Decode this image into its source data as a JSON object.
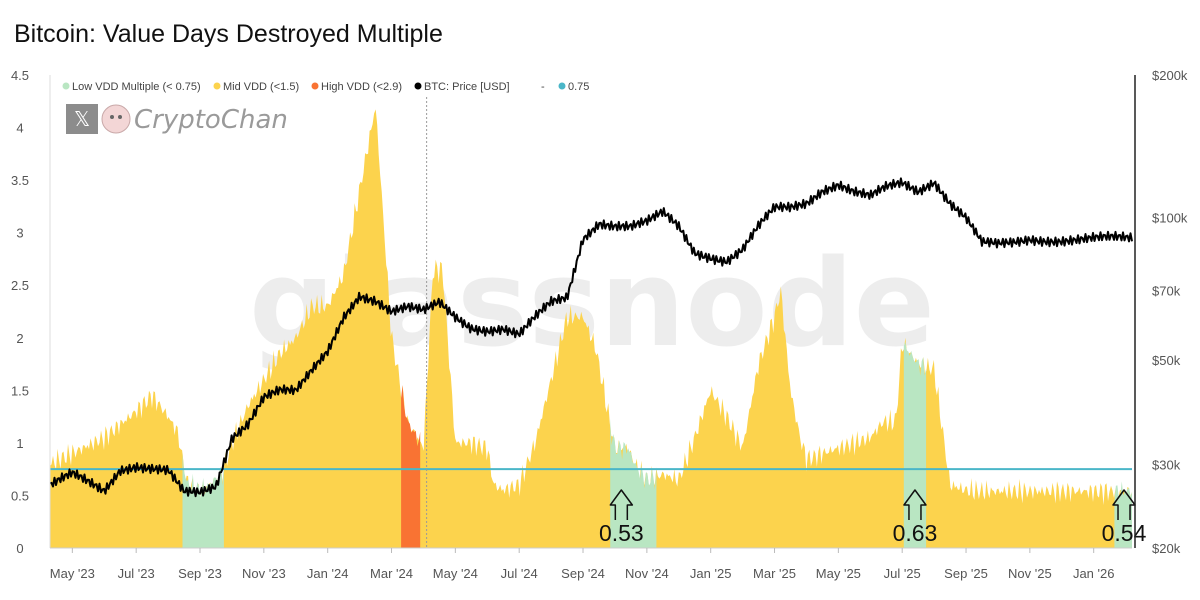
{
  "chart_data": {
    "type": "area",
    "title": "Bitcoin: Value Days Destroyed Multiple",
    "x_ticks": [
      "May '23",
      "Jul '23",
      "Sep '23",
      "Nov '23",
      "Jan '24",
      "Mar '24",
      "May '24",
      "Jul '24",
      "Sep '24",
      "Nov '24",
      "Jan '25",
      "Mar '25",
      "May '25",
      "Jul '25",
      "Sep '25",
      "Nov '25",
      "Jan '26"
    ],
    "x_range_months": [
      -0.7,
      33.2
    ],
    "y_left": {
      "ylim": [
        0,
        4.5
      ],
      "ticks": [
        "0",
        "0.5",
        "1",
        "1.5",
        "2",
        "2.5",
        "3",
        "3.5",
        "4",
        "4.5"
      ]
    },
    "y_right": {
      "scale": "log",
      "ylim": [
        20000,
        200000
      ],
      "ticks": [
        {
          "v": 200000,
          "label": "$200k"
        },
        {
          "v": 100000,
          "label": "$100k"
        },
        {
          "v": 70000,
          "label": "$70k"
        },
        {
          "v": 50000,
          "label": "$50k"
        },
        {
          "v": 30000,
          "label": "$30k"
        },
        {
          "v": 20000,
          "label": "$20k"
        }
      ]
    },
    "threshold": 0.75,
    "legend": [
      {
        "label": "Low VDD Multiple (< 0.75)",
        "color": "#b9e6c2"
      },
      {
        "label": "Mid VDD (<1.5)",
        "color": "#fcd34d"
      },
      {
        "label": "High VDD (<2.9)",
        "color": "#f97333"
      },
      {
        "label": "BTC: Price [USD]",
        "color": "#000000"
      },
      {
        "label": "-",
        "color": "#ffffff"
      },
      {
        "label": "0.75",
        "color": "#4ab6c8"
      }
    ],
    "series": [
      {
        "name": "VDD Multiple",
        "x": [
          -0.7,
          0,
          1,
          2,
          2.5,
          3,
          3.3,
          3.6,
          4,
          4.3,
          4.7,
          5,
          5.5,
          6,
          6.5,
          7,
          7.5,
          8,
          8.5,
          9,
          9.5,
          10,
          10.5,
          11,
          11.3,
          11.6,
          12,
          12.5,
          13,
          13.2,
          13.5,
          14,
          14.5,
          15,
          15.5,
          16,
          16.4,
          16.9,
          17,
          17.4,
          17.7,
          18,
          18.5,
          19,
          19.5,
          20,
          20.5,
          21,
          21.5,
          22,
          22.2,
          22.5,
          22.8,
          23,
          23.1,
          23.5,
          24,
          24.5,
          25,
          25.4,
          25.8,
          26,
          26.5,
          27,
          27.5,
          28,
          28.5,
          29,
          29.5,
          30,
          30.3,
          30.5,
          30.7,
          31,
          31.2,
          31.5,
          31.8,
          32,
          32.5,
          33.2
        ],
        "values": [
          0.8,
          0.9,
          1.05,
          1.3,
          1.45,
          1.25,
          1.1,
          0.6,
          0.55,
          0.6,
          0.72,
          1.0,
          1.35,
          1.6,
          1.85,
          2.0,
          2.3,
          2.3,
          2.6,
          3.4,
          4.2,
          2.0,
          1.2,
          0.95,
          2.65,
          2.65,
          1.0,
          1.0,
          0.95,
          0.6,
          0.55,
          0.6,
          1.0,
          1.6,
          2.2,
          2.2,
          1.9,
          1.1,
          0.95,
          0.95,
          0.75,
          0.65,
          0.7,
          0.65,
          1.05,
          1.5,
          1.25,
          0.95,
          1.75,
          2.2,
          2.45,
          1.5,
          1.05,
          0.85,
          0.85,
          0.9,
          0.95,
          1.0,
          1.05,
          1.2,
          1.2,
          1.95,
          1.75,
          1.7,
          0.6,
          0.55,
          0.54,
          0.54,
          0.54,
          0.54,
          0.54,
          0.54,
          0.54,
          0.54,
          0.54,
          0.54,
          0.54,
          0.54,
          0.54,
          0.54
        ],
        "bands": [
          {
            "label": "Low VDD Multiple (< 0.75)",
            "from": 3.45,
            "to": 4.75
          },
          {
            "label": "High VDD (<2.9)",
            "from": 10.3,
            "to": 10.9
          },
          {
            "label": "Low VDD Multiple (< 0.75)",
            "from": 16.85,
            "to": 18.3
          },
          {
            "label": "Low VDD Multiple (< 0.75)",
            "from": 26.05,
            "to": 26.75
          },
          {
            "label": "Low VDD Multiple (< 0.75)",
            "from": 32.65,
            "to": 33.2
          }
        ]
      },
      {
        "name": "BTC: Price [USD]",
        "axis": "right",
        "x": [
          -0.7,
          0,
          0.5,
          1,
          1.5,
          2,
          2.5,
          3,
          3.5,
          4,
          4.5,
          5,
          5.5,
          6,
          6.5,
          7,
          7.5,
          8,
          8.5,
          9,
          9.5,
          10,
          10.5,
          11,
          11.5,
          12,
          12.5,
          13,
          13.5,
          14,
          14.5,
          15,
          15.5,
          16,
          16.5,
          17,
          17.5,
          18,
          18.5,
          19,
          19.5,
          20,
          20.5,
          21,
          21.5,
          22,
          22.5,
          23,
          23.5,
          24,
          24.5,
          25,
          25.5,
          26,
          26.5,
          27,
          27.5,
          28,
          28.5,
          29,
          29.5,
          30,
          30.5,
          31,
          31.5,
          32,
          32.5,
          33,
          33.2
        ],
        "values": [
          27000,
          28500,
          27500,
          26500,
          29500,
          30000,
          29500,
          29000,
          26000,
          26000,
          27000,
          34500,
          37000,
          42000,
          43000,
          42500,
          47000,
          52000,
          62000,
          69000,
          67000,
          63000,
          64000,
          63000,
          66000,
          62000,
          59000,
          58000,
          58000,
          56000,
          61000,
          66000,
          68000,
          91000,
          98000,
          96000,
          95000,
          97000,
          102000,
          96000,
          85000,
          83000,
          81000,
          85000,
          95000,
          104000,
          105000,
          108000,
          115000,
          118000,
          113000,
          110000,
          115000,
          118000,
          114000,
          120000,
          108000,
          100000,
          88000,
          87000,
          88000,
          90000,
          90000,
          90000,
          90000,
          90000,
          90000,
          90000,
          90000
        ]
      }
    ],
    "annotations": [
      {
        "label": "0.53",
        "x": 17.2,
        "y": 0.53
      },
      {
        "label": "0.63",
        "x": 26.4,
        "y": 0.63
      },
      {
        "label": "0.54",
        "x": 32.95,
        "y": 0.54
      }
    ]
  },
  "brand": {
    "name": "CryptoChan",
    "x_symbol": "𝕏"
  },
  "watermark": "glassnode"
}
